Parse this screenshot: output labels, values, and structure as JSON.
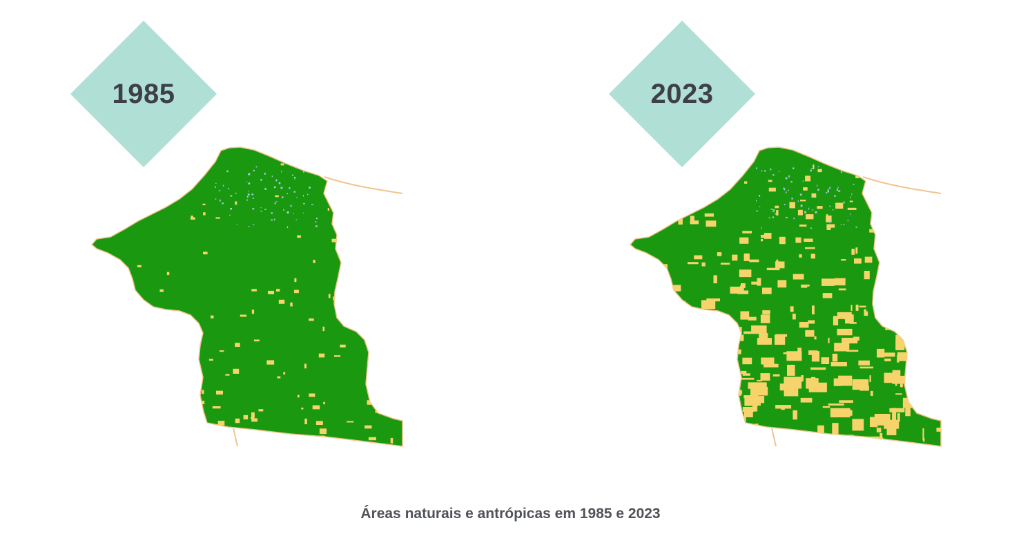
{
  "colors": {
    "badge": "#b0dfd5",
    "badge_text": "#3d4046",
    "natural": "#1a9910",
    "anthropic": "#f7d46b",
    "border_road": "#f1c48e",
    "water": "#a9c9e8",
    "caption": "#505359"
  },
  "maps": [
    {
      "year": "1985",
      "anthropic_share": 0.05
    },
    {
      "year": "2023",
      "anthropic_share": 0.3
    }
  ],
  "caption": "Áreas naturais e antrópicas em 1985 e 2023"
}
